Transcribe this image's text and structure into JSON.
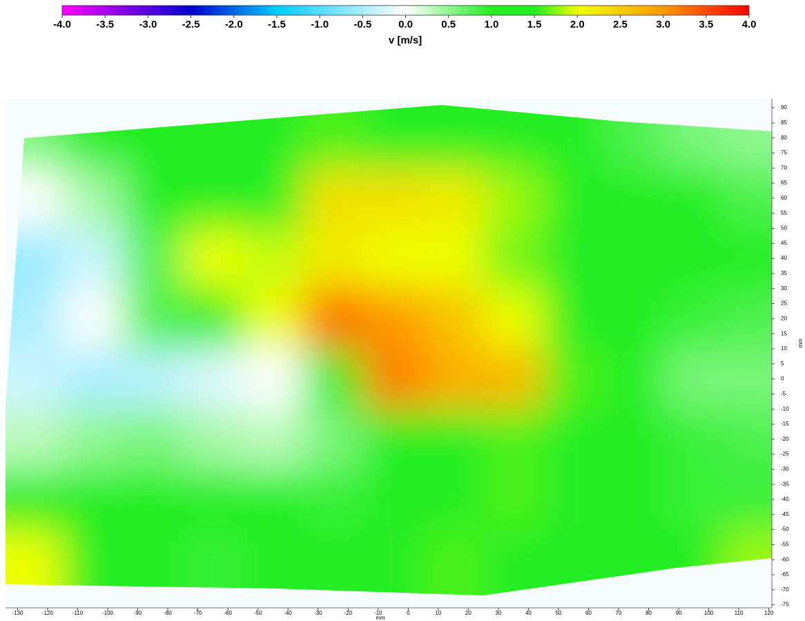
{
  "chart_data": {
    "type": "heatmap",
    "colorbar": {
      "label": "v [m/s]",
      "lim": [
        -4,
        4
      ],
      "ticks": [
        {
          "value": -4,
          "label": "-4.0"
        },
        -3.5,
        {
          "value": -3,
          "label": "-3.0"
        },
        -2.5,
        {
          "value": -2,
          "label": "-2.0"
        },
        -1.5,
        {
          "value": -1,
          "label": "-1.0"
        },
        -0.5,
        {
          "value": 0,
          "label": "0.0"
        },
        0.5,
        {
          "value": 1,
          "label": "1.0"
        },
        1.5,
        {
          "value": 2,
          "label": "2.0"
        },
        2.5,
        {
          "value": 3,
          "label": "3.0"
        },
        3.5,
        {
          "value": 4,
          "label": "4.0"
        }
      ],
      "colorscale": [
        [
          -4,
          "#ff00ff"
        ],
        [
          -2.5,
          "#0000cc"
        ],
        [
          -1.5,
          "#00ccff"
        ],
        [
          0,
          "#ffffff"
        ],
        [
          1,
          "#22ee22"
        ],
        [
          1.5,
          "#22ee22"
        ],
        [
          2,
          "#eeff00"
        ],
        [
          3,
          "#ff9900"
        ],
        [
          4,
          "#ff0000"
        ]
      ]
    },
    "x_label": "mm",
    "y_label": "mm",
    "xlim": [
      -134,
      121
    ],
    "ylim": [
      -76,
      93
    ],
    "xticks": [
      -130,
      -120,
      -110,
      -100,
      -90,
      -80,
      -70,
      -60,
      -50,
      -40,
      -30,
      -20,
      -10,
      0,
      10,
      20,
      30,
      40,
      50,
      60,
      70,
      80,
      90,
      100,
      110,
      120
    ],
    "yticks": [
      90,
      85,
      80,
      75,
      70,
      65,
      60,
      55,
      50,
      45,
      40,
      35,
      30,
      25,
      20,
      15,
      10,
      5,
      0,
      -5,
      -10,
      -15,
      -20,
      -25,
      -30,
      -35,
      -40,
      -45,
      -50,
      -55,
      -60,
      -65,
      -70,
      -75
    ],
    "x": [
      -125,
      -105,
      -85,
      -65,
      -45,
      -25,
      -5,
      15,
      35,
      55,
      75,
      95,
      115
    ],
    "y": [
      80,
      60,
      40,
      20,
      0,
      -20,
      -40,
      -60
    ],
    "z": [
      [
        0.6,
        1.0,
        1.2,
        1.3,
        1.3,
        1.6,
        1.5,
        1.4,
        1.2,
        1.0,
        0.8,
        0.6,
        0.5
      ],
      [
        0,
        0.4,
        1.0,
        1.3,
        1.4,
        2.3,
        2.3,
        2.2,
        1.8,
        1.3,
        1.1,
        1.0,
        0.8
      ],
      [
        -0.6,
        -0.3,
        0.8,
        2.0,
        1.9,
        2.2,
        2.0,
        2.0,
        1.7,
        1.3,
        1.2,
        1.1,
        1.0
      ],
      [
        -0.5,
        0,
        0.8,
        1.5,
        2.0,
        3.3,
        3.0,
        2.6,
        2.0,
        1.4,
        1.1,
        0.9,
        0.8
      ],
      [
        -0.3,
        -0.5,
        -0.4,
        -0.2,
        0,
        1.0,
        3.2,
        2.8,
        2.7,
        1.6,
        1.0,
        0.6,
        0.6
      ],
      [
        0.3,
        0.5,
        0.6,
        0.4,
        0.3,
        0.6,
        1.2,
        1.4,
        1.6,
        1.4,
        1.2,
        0.9,
        0.8
      ],
      [
        1.0,
        1.2,
        1.2,
        1.0,
        1.0,
        0.9,
        1.1,
        1.5,
        1.6,
        1.4,
        1.2,
        0.9,
        0.9
      ],
      [
        2.0,
        1.4,
        1.0,
        0.9,
        1.1,
        1.0,
        1.2,
        1.6,
        1.2,
        1.0,
        1.1,
        1.4,
        1.8
      ]
    ]
  }
}
